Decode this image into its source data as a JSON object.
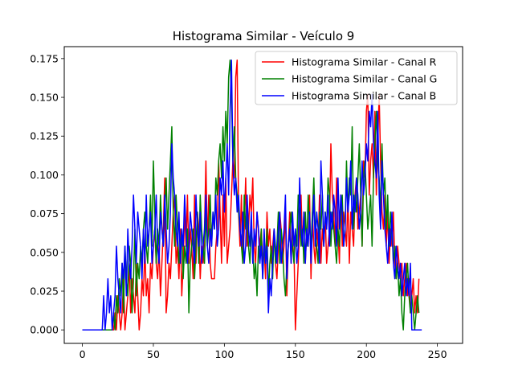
{
  "chart_data": {
    "type": "line",
    "title": "Histograma Similar - Veículo 9",
    "xlabel": "",
    "ylabel": "",
    "xlim": [
      -12.75,
      267.75
    ],
    "ylim": [
      -0.0087,
      0.1827
    ],
    "x_ticks": [
      0,
      50,
      100,
      150,
      200,
      250
    ],
    "x_tick_labels": [
      "0",
      "50",
      "100",
      "150",
      "200",
      "250"
    ],
    "y_ticks": [
      0.0,
      0.025,
      0.05,
      0.075,
      0.1,
      0.125,
      0.15,
      0.175
    ],
    "y_tick_labels": [
      "0.000",
      "0.025",
      "0.050",
      "0.075",
      "0.100",
      "0.125",
      "0.150",
      "0.175"
    ],
    "grid": false,
    "legend_position": "upper-right",
    "series": [
      {
        "name": "Histograma Similar - Canal R",
        "color": "#ff0000",
        "values": [
          0,
          0,
          0,
          0,
          0,
          0,
          0,
          0,
          0,
          0,
          0,
          0,
          0,
          0,
          0,
          0,
          0,
          0,
          0,
          0,
          0,
          0,
          0,
          0.011,
          0,
          0.022,
          0.011,
          0,
          0.011,
          0.033,
          0,
          0.011,
          0.022,
          0.043,
          0.011,
          0.033,
          0.022,
          0.011,
          0.043,
          0.022,
          0,
          0.011,
          0.033,
          0.022,
          0.054,
          0.022,
          0.033,
          0.011,
          0.043,
          0.033,
          0.054,
          0.065,
          0.043,
          0.033,
          0.054,
          0.022,
          0.043,
          0.065,
          0.098,
          0.011,
          0.022,
          0.043,
          0.033,
          0.054,
          0.076,
          0.087,
          0.043,
          0.054,
          0.033,
          0.065,
          0.022,
          0.043,
          0.076,
          0.054,
          0.087,
          0.043,
          0.065,
          0.054,
          0.033,
          0.087,
          0.043,
          0.076,
          0.065,
          0.033,
          0.054,
          0.043,
          0.065,
          0.109,
          0.054,
          0.087,
          0.043,
          0.033,
          0.033,
          0.033,
          0.054,
          0.065,
          0.109,
          0.076,
          0.043,
          0.087,
          0.054,
          0.098,
          0.043,
          0.054,
          0.065,
          0.087,
          0.109,
          0.098,
          0.163,
          0.174,
          0.076,
          0.054,
          0.087,
          0.043,
          0.065,
          0.098,
          0.054,
          0.065,
          0.087,
          0.076,
          0.098,
          0.054,
          0.043,
          0.076,
          0.065,
          0.054,
          0.065,
          0.043,
          0.054,
          0.033,
          0.076,
          0.054,
          0.065,
          0.043,
          0.054,
          0.065,
          0.043,
          0.033,
          0.054,
          0.076,
          0.065,
          0.043,
          0.054,
          0.076,
          0.022,
          0.054,
          0.076,
          0.043,
          0.065,
          0.054,
          0,
          0.022,
          0.043,
          0.065,
          0.087,
          0.054,
          0.076,
          0.043,
          0.065,
          0.054,
          0.087,
          0.033,
          0.076,
          0.054,
          0.043,
          0.065,
          0.054,
          0.087,
          0.043,
          0.065,
          0.054,
          0.076,
          0.043,
          0.054,
          0.065,
          0.12,
          0.087,
          0.076,
          0.054,
          0.098,
          0.065,
          0.043,
          0.087,
          0.054,
          0.076,
          0.065,
          0.054,
          0.087,
          0.043,
          0.076,
          0.065,
          0.054,
          0.087,
          0.098,
          0.065,
          0.076,
          0.087,
          0.054,
          0.109,
          0.098,
          0.141,
          0.152,
          0.087,
          0.109,
          0.12,
          0.098,
          0.141,
          0.087,
          0.12,
          0.152,
          0.109,
          0.076,
          0.065,
          0.087,
          0.054,
          0.076,
          0.043,
          0.065,
          0.054,
          0.076,
          0.043,
          0.033,
          0.054,
          0.043,
          0.033,
          0.043,
          0.022,
          0.033,
          0.043,
          0.022,
          0.033,
          0.011,
          0.022,
          0.033,
          0.011,
          0.022,
          0.011,
          0.033
        ]
      },
      {
        "name": "Histograma Similar - Canal G",
        "color": "#008000",
        "values": [
          0,
          0,
          0,
          0,
          0,
          0,
          0,
          0,
          0,
          0,
          0,
          0,
          0,
          0,
          0,
          0,
          0,
          0,
          0,
          0,
          0,
          0,
          0.011,
          0,
          0.022,
          0.011,
          0.033,
          0.022,
          0.043,
          0.011,
          0.054,
          0.033,
          0.022,
          0.054,
          0.043,
          0.011,
          0.033,
          0.065,
          0.022,
          0.043,
          0.033,
          0.054,
          0.043,
          0.065,
          0.076,
          0.054,
          0.043,
          0.065,
          0.087,
          0.054,
          0.109,
          0.076,
          0.043,
          0.065,
          0.054,
          0.087,
          0.065,
          0.054,
          0.076,
          0.098,
          0.065,
          0.087,
          0.109,
          0.131,
          0.076,
          0.054,
          0.087,
          0.065,
          0.043,
          0.054,
          0.065,
          0.033,
          0.054,
          0.043,
          0.065,
          0.011,
          0.043,
          0.054,
          0.065,
          0.033,
          0.054,
          0.076,
          0.043,
          0.087,
          0.065,
          0.054,
          0.043,
          0.076,
          0.054,
          0.065,
          0.087,
          0.054,
          0.076,
          0.065,
          0.098,
          0.087,
          0.109,
          0.12,
          0.098,
          0.131,
          0.109,
          0.141,
          0.12,
          0.163,
          0.174,
          0.152,
          0.109,
          0.131,
          0.098,
          0.087,
          0.076,
          0.065,
          0.054,
          0.043,
          0.087,
          0.065,
          0.076,
          0.054,
          0.043,
          0.065,
          0.054,
          0.033,
          0.043,
          0.022,
          0.054,
          0.043,
          0.065,
          0.033,
          0.054,
          0.043,
          0.065,
          0.022,
          0.043,
          0.054,
          0.033,
          0.065,
          0.043,
          0.054,
          0.076,
          0.043,
          0.065,
          0.054,
          0.033,
          0.022,
          0.043,
          0.054,
          0.065,
          0.076,
          0.054,
          0.043,
          0.065,
          0.054,
          0.087,
          0.076,
          0.054,
          0.065,
          0.043,
          0.076,
          0.054,
          0.087,
          0.065,
          0.054,
          0.076,
          0.098,
          0.065,
          0.054,
          0.043,
          0.076,
          0.065,
          0.087,
          0.054,
          0.076,
          0.065,
          0.098,
          0.087,
          0.054,
          0.076,
          0.065,
          0.054,
          0.043,
          0.065,
          0.054,
          0.076,
          0.087,
          0.054,
          0.065,
          0.109,
          0.076,
          0.098,
          0.087,
          0.131,
          0.065,
          0.087,
          0.076,
          0.098,
          0.12,
          0.087,
          0.054,
          0.098,
          0.109,
          0.087,
          0.065,
          0.076,
          0.087,
          0.054,
          0.098,
          0.12,
          0.141,
          0.109,
          0.098,
          0.076,
          0.12,
          0.087,
          0.098,
          0.065,
          0.087,
          0.054,
          0.076,
          0.065,
          0.043,
          0.054,
          0.033,
          0.043,
          0.022,
          0.033,
          0.011,
          0,
          0.022,
          0.033,
          0.043,
          0.022,
          0.011,
          0.022,
          0.011,
          0,
          0.011,
          0.022,
          0.011
        ]
      },
      {
        "name": "Histograma Similar - Canal B",
        "color": "#0000ff",
        "values": [
          0,
          0,
          0,
          0,
          0,
          0,
          0,
          0,
          0,
          0,
          0,
          0,
          0,
          0,
          0,
          0.022,
          0,
          0.011,
          0.033,
          0.011,
          0.022,
          0,
          0.011,
          0.022,
          0.054,
          0.033,
          0.022,
          0.011,
          0.043,
          0.033,
          0.054,
          0.022,
          0.065,
          0.043,
          0.033,
          0.054,
          0.087,
          0.065,
          0.043,
          0.076,
          0.065,
          0.054,
          0.033,
          0.065,
          0.043,
          0.087,
          0.054,
          0.065,
          0.076,
          0.043,
          0.054,
          0.065,
          0.087,
          0.054,
          0.043,
          0.076,
          0.065,
          0.054,
          0.087,
          0.065,
          0.043,
          0.054,
          0.076,
          0.12,
          0.098,
          0.087,
          0.065,
          0.054,
          0.076,
          0.043,
          0.065,
          0.054,
          0.087,
          0.065,
          0.043,
          0.054,
          0.076,
          0.065,
          0.054,
          0.043,
          0.087,
          0.065,
          0.054,
          0.076,
          0.043,
          0.054,
          0.065,
          0.087,
          0.054,
          0.043,
          0.065,
          0.054,
          0.076,
          0.065,
          0.087,
          0.054,
          0.065,
          0.098,
          0.087,
          0.109,
          0.076,
          0.098,
          0.12,
          0.087,
          0.141,
          0.174,
          0.109,
          0.087,
          0.098,
          0.076,
          0.087,
          0.065,
          0.054,
          0.076,
          0.043,
          0.054,
          0.087,
          0.065,
          0.054,
          0.076,
          0.043,
          0.065,
          0.054,
          0.076,
          0.065,
          0.043,
          0.054,
          0.033,
          0.065,
          0.043,
          0.054,
          0.011,
          0.033,
          0.022,
          0.043,
          0.065,
          0.054,
          0.043,
          0.065,
          0.076,
          0.043,
          0.054,
          0.065,
          0.087,
          0.033,
          0.054,
          0.065,
          0.043,
          0.076,
          0.054,
          0.065,
          0.043,
          0.054,
          0.098,
          0.065,
          0.054,
          0.076,
          0.043,
          0.065,
          0.054,
          0.076,
          0.043,
          0.065,
          0.087,
          0.054,
          0.076,
          0.065,
          0.043,
          0.109,
          0.087,
          0.054,
          0.076,
          0.065,
          0.087,
          0.054,
          0.076,
          0.065,
          0.087,
          0.076,
          0.054,
          0.098,
          0.065,
          0.087,
          0.076,
          0.054,
          0.065,
          0.098,
          0.076,
          0.087,
          0.109,
          0.065,
          0.087,
          0.076,
          0.098,
          0.087,
          0.065,
          0.076,
          0.109,
          0.087,
          0.098,
          0.12,
          0.109,
          0.141,
          0.131,
          0.152,
          0.12,
          0.109,
          0.098,
          0.141,
          0.087,
          0.065,
          0.109,
          0.087,
          0.065,
          0.054,
          0.043,
          0.065,
          0.054,
          0.076,
          0.043,
          0.033,
          0.054,
          0.043,
          0.033,
          0.043,
          0.022,
          0.033,
          0.043,
          0.022,
          0.033,
          0.022,
          0.043,
          0,
          0,
          0,
          0,
          0,
          0,
          0,
          0
        ]
      }
    ]
  }
}
